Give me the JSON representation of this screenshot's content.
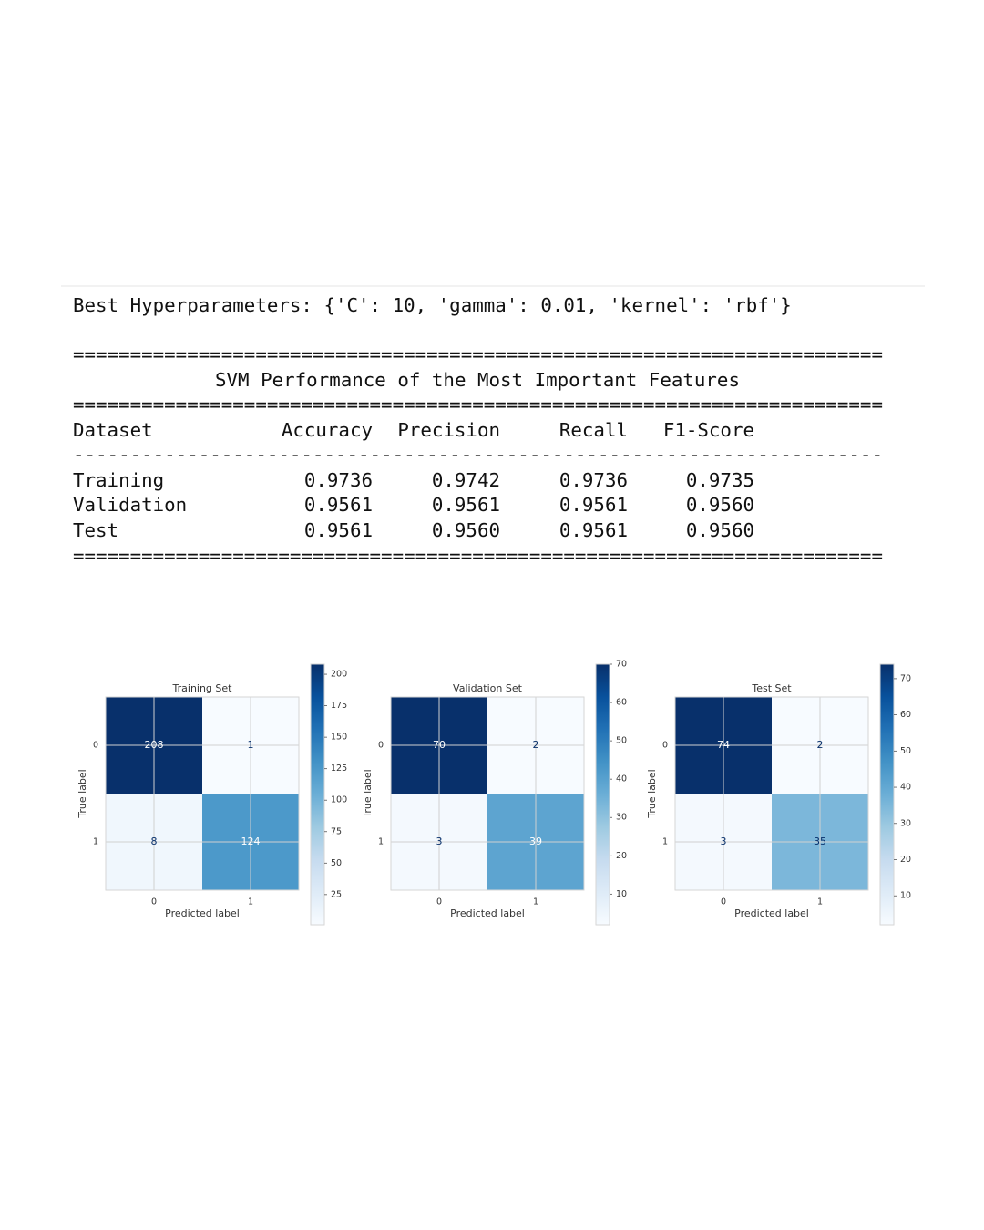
{
  "output": {
    "hyperparameters": "Best Hyperparameters: {'C': 10, 'gamma': 0.01, 'kernel': 'rbf'}",
    "rule_double": "=======================================================================",
    "rule_single": "-----------------------------------------------------------------------",
    "title": "SVM Performance of the Most Important Features",
    "table": {
      "header": [
        "Dataset",
        "Accuracy",
        "Precision",
        "Recall",
        "F1-Score"
      ],
      "rows": [
        [
          "Training",
          "0.9736",
          "0.9742",
          "0.9736",
          "0.9735"
        ],
        [
          "Validation",
          "0.9561",
          "0.9561",
          "0.9561",
          "0.9560"
        ],
        [
          "Test",
          "0.9561",
          "0.9560",
          "0.9561",
          "0.9560"
        ]
      ]
    }
  },
  "chart_data": [
    {
      "type": "heatmap",
      "title": "Training Set",
      "x_label": "Predicted label",
      "y_label": "True label",
      "x_categories": [
        "0",
        "1"
      ],
      "y_categories": [
        "0",
        "1"
      ],
      "values": [
        [
          208,
          1
        ],
        [
          8,
          124
        ]
      ],
      "clim": [
        1,
        208
      ],
      "cticks": [
        25,
        50,
        75,
        100,
        125,
        150,
        175,
        200
      ],
      "grid": true,
      "colormap": [
        "#f7fbff",
        "#deebf7",
        "#c6dbef",
        "#9ecae1",
        "#6baed6",
        "#4292c6",
        "#2171b5",
        "#08519c",
        "#08306b"
      ]
    },
    {
      "type": "heatmap",
      "title": "Validation Set",
      "x_label": "Predicted label",
      "y_label": "True label",
      "x_categories": [
        "0",
        "1"
      ],
      "y_categories": [
        "0",
        "1"
      ],
      "values": [
        [
          70,
          2
        ],
        [
          3,
          39
        ]
      ],
      "clim": [
        2,
        70
      ],
      "cticks": [
        10,
        20,
        30,
        40,
        50,
        60,
        70
      ],
      "grid": true,
      "colormap": [
        "#f7fbff",
        "#deebf7",
        "#c6dbef",
        "#9ecae1",
        "#6baed6",
        "#4292c6",
        "#2171b5",
        "#08519c",
        "#08306b"
      ]
    },
    {
      "type": "heatmap",
      "title": "Test Set",
      "x_label": "Predicted label",
      "y_label": "True label",
      "x_categories": [
        "0",
        "1"
      ],
      "y_categories": [
        "0",
        "1"
      ],
      "values": [
        [
          74,
          2
        ],
        [
          3,
          35
        ]
      ],
      "clim": [
        2,
        74
      ],
      "cticks": [
        10,
        20,
        30,
        40,
        50,
        60,
        70
      ],
      "grid": true,
      "colormap": [
        "#f7fbff",
        "#deebf7",
        "#c6dbef",
        "#9ecae1",
        "#6baed6",
        "#4292c6",
        "#2171b5",
        "#08519c",
        "#08306b"
      ]
    }
  ]
}
